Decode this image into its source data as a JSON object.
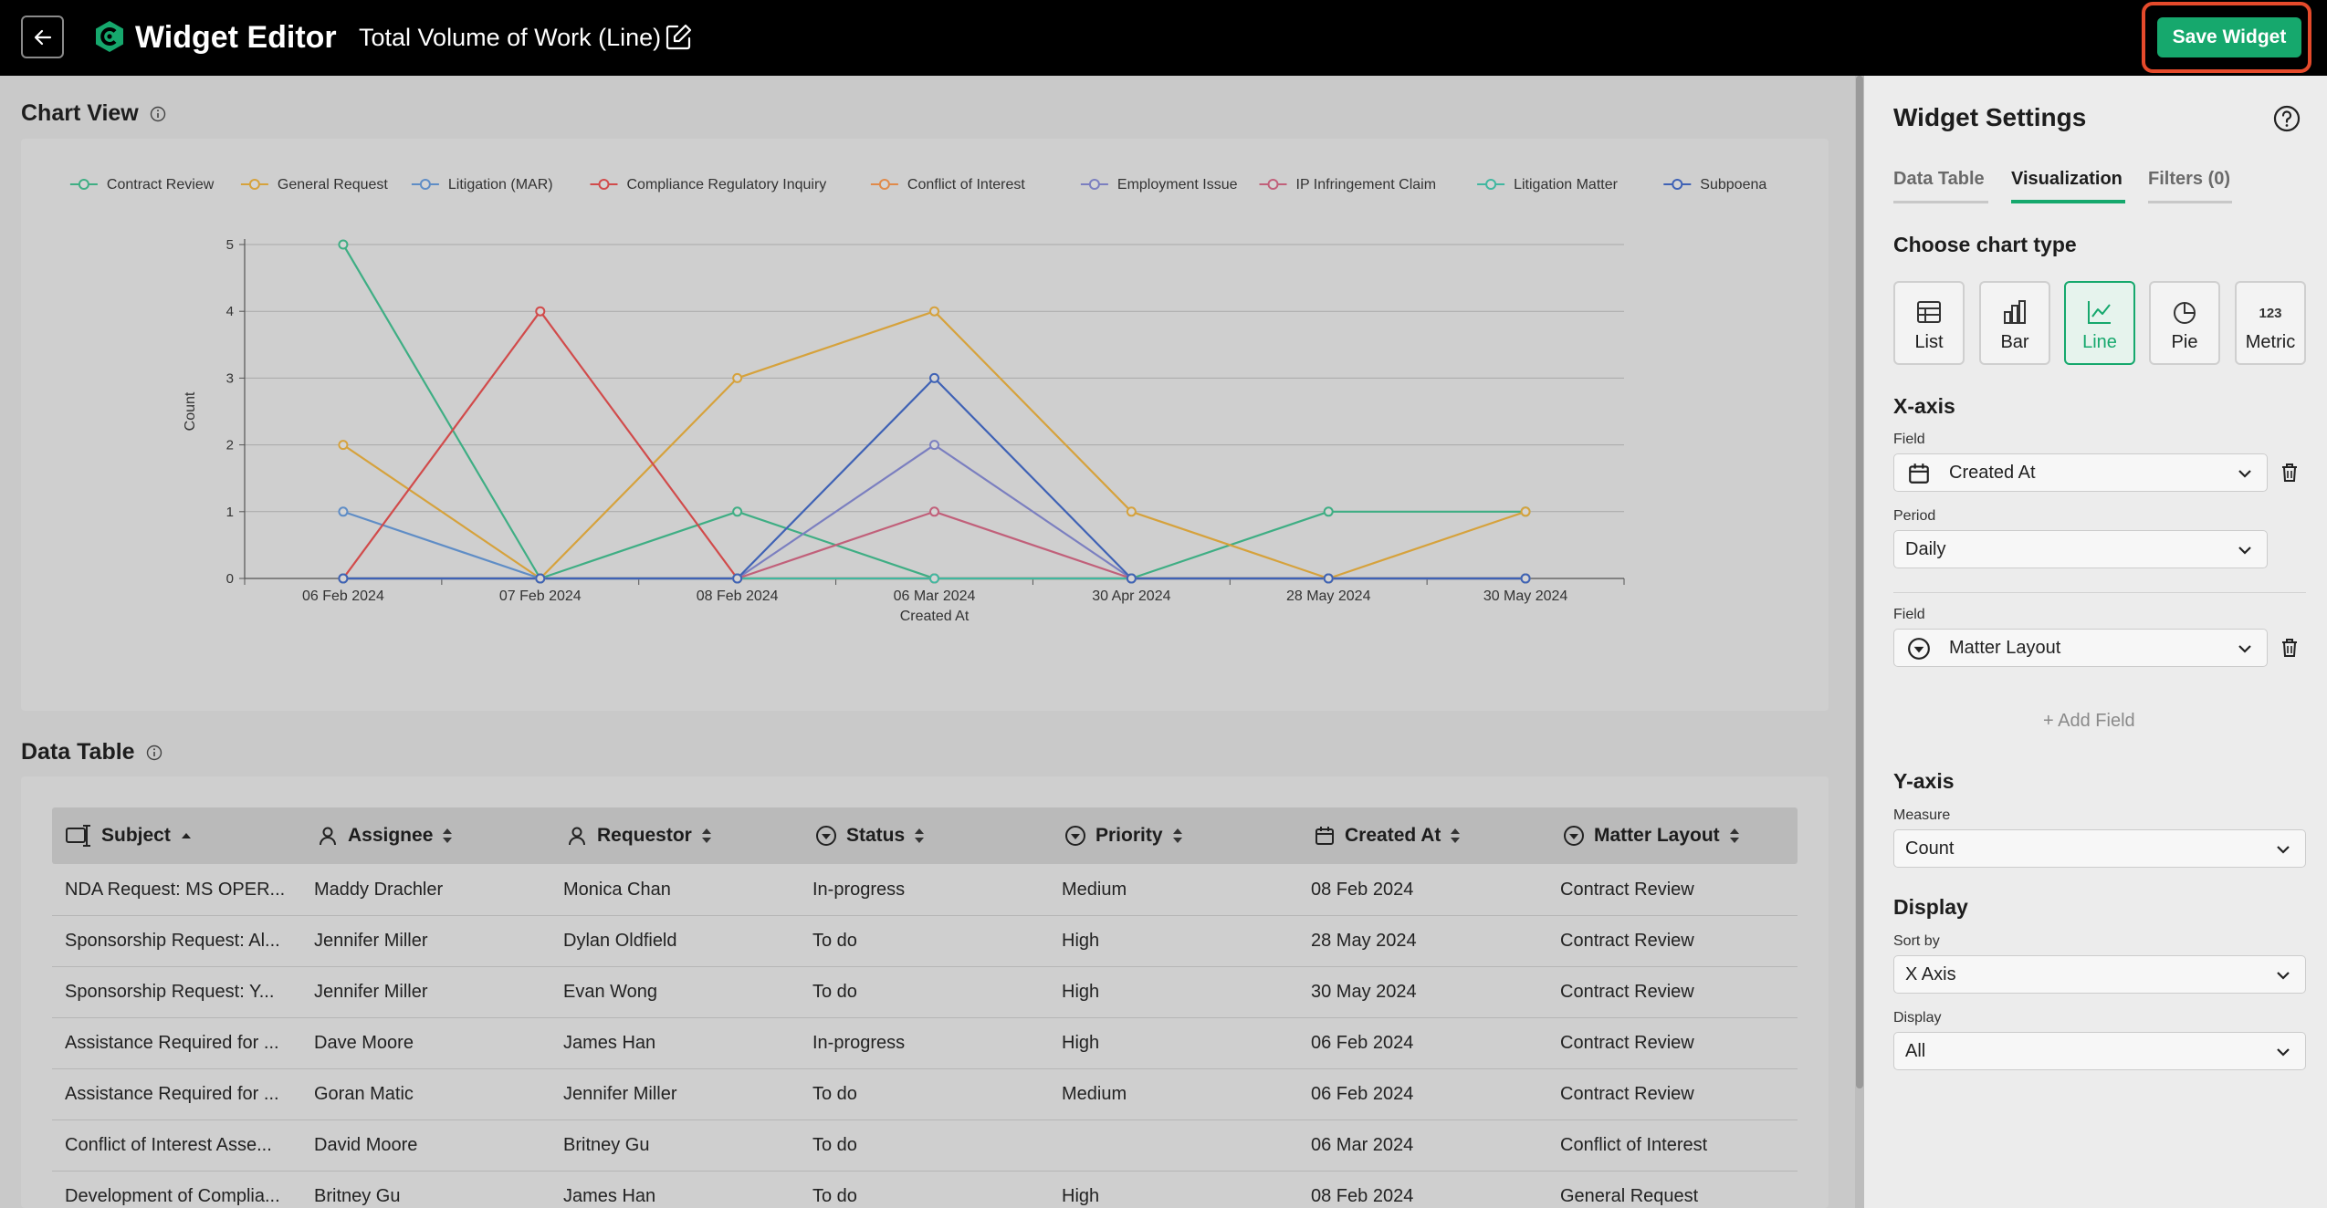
{
  "header": {
    "app_title": "Widget Editor",
    "widget_name": "Total Volume of Work (Line)",
    "save_label": "Save Widget"
  },
  "chart_view": {
    "heading": "Chart View"
  },
  "chart_data": {
    "type": "line",
    "xlabel": "Created At",
    "ylabel": "Count",
    "ylim": [
      0,
      5
    ],
    "yticks": [
      0,
      1,
      2,
      3,
      4,
      5
    ],
    "categories": [
      "06 Feb 2024",
      "07 Feb 2024",
      "08 Feb 2024",
      "06 Mar 2024",
      "30 Apr 2024",
      "28 May 2024",
      "30 May 2024"
    ],
    "legend_position": "top",
    "grid": true,
    "series": [
      {
        "name": "Contract Review",
        "color": "#3fae84",
        "values": [
          5,
          0,
          1,
          0,
          0,
          1,
          1
        ]
      },
      {
        "name": "General Request",
        "color": "#d6a23c",
        "values": [
          2,
          0,
          3,
          4,
          1,
          0,
          1
        ]
      },
      {
        "name": "Litigation (MAR)",
        "color": "#5f8dc6",
        "values": [
          1,
          0,
          0,
          0,
          0,
          0,
          0
        ]
      },
      {
        "name": "Compliance Regulatory Inquiry",
        "color": "#d14b4b",
        "values": [
          0,
          4,
          0,
          0,
          0,
          0,
          0
        ]
      },
      {
        "name": "Conflict of Interest",
        "color": "#e08a4a",
        "values": [
          0,
          0,
          0,
          0,
          0,
          0,
          0
        ]
      },
      {
        "name": "Employment Issue",
        "color": "#7b7fc0",
        "values": [
          0,
          0,
          0,
          2,
          0,
          0,
          0
        ]
      },
      {
        "name": "IP Infringement Claim",
        "color": "#c1607a",
        "values": [
          0,
          0,
          0,
          1,
          0,
          0,
          0
        ]
      },
      {
        "name": "Litigation Matter",
        "color": "#40b7a0",
        "values": [
          0,
          0,
          0,
          0,
          0,
          0,
          0
        ]
      },
      {
        "name": "Subpoena",
        "color": "#3f62b5",
        "values": [
          0,
          0,
          0,
          3,
          0,
          0,
          0
        ]
      }
    ]
  },
  "data_table": {
    "heading": "Data Table",
    "columns": [
      "Subject",
      "Assignee",
      "Requestor",
      "Status",
      "Priority",
      "Created At",
      "Matter Layout"
    ],
    "rows": [
      [
        "NDA Request: MS OPER...",
        "Maddy Drachler",
        "Monica Chan",
        "In-progress",
        "Medium",
        "08 Feb 2024",
        "Contract Review"
      ],
      [
        "Sponsorship Request: Al...",
        "Jennifer Miller",
        "Dylan Oldfield",
        "To do",
        "High",
        "28 May 2024",
        "Contract Review"
      ],
      [
        "Sponsorship Request: Y...",
        "Jennifer Miller",
        "Evan Wong",
        "To do",
        "High",
        "30 May 2024",
        "Contract Review"
      ],
      [
        "Assistance Required for ...",
        "Dave Moore",
        "James Han",
        "In-progress",
        "High",
        "06 Feb 2024",
        "Contract Review"
      ],
      [
        "Assistance Required for ...",
        "Goran Matic",
        "Jennifer Miller",
        "To do",
        "Medium",
        "06 Feb 2024",
        "Contract Review"
      ],
      [
        "Conflict of Interest Asse...",
        "David Moore",
        "Britney Gu",
        "To do",
        "",
        "06 Mar 2024",
        "Conflict of Interest"
      ],
      [
        "Development of Complia...",
        "Britney Gu",
        "James Han",
        "To do",
        "High",
        "08 Feb 2024",
        "General Request"
      ]
    ]
  },
  "settings": {
    "title": "Widget Settings",
    "tabs": [
      "Data Table",
      "Visualization",
      "Filters (0)"
    ],
    "choose_chart_type": "Choose chart type",
    "chart_types": [
      "List",
      "Bar",
      "Line",
      "Pie",
      "Metric"
    ],
    "x_axis": {
      "heading": "X-axis",
      "field_label": "Field",
      "field_value": "Created At",
      "period_label": "Period",
      "period_value": "Daily",
      "field2_label": "Field",
      "field2_value": "Matter Layout",
      "add_field": "Add Field"
    },
    "y_axis": {
      "heading": "Y-axis",
      "measure_label": "Measure",
      "measure_value": "Count"
    },
    "display": {
      "heading": "Display",
      "sort_label": "Sort by",
      "sort_value": "X Axis",
      "display_label": "Display",
      "display_value": "All"
    }
  }
}
